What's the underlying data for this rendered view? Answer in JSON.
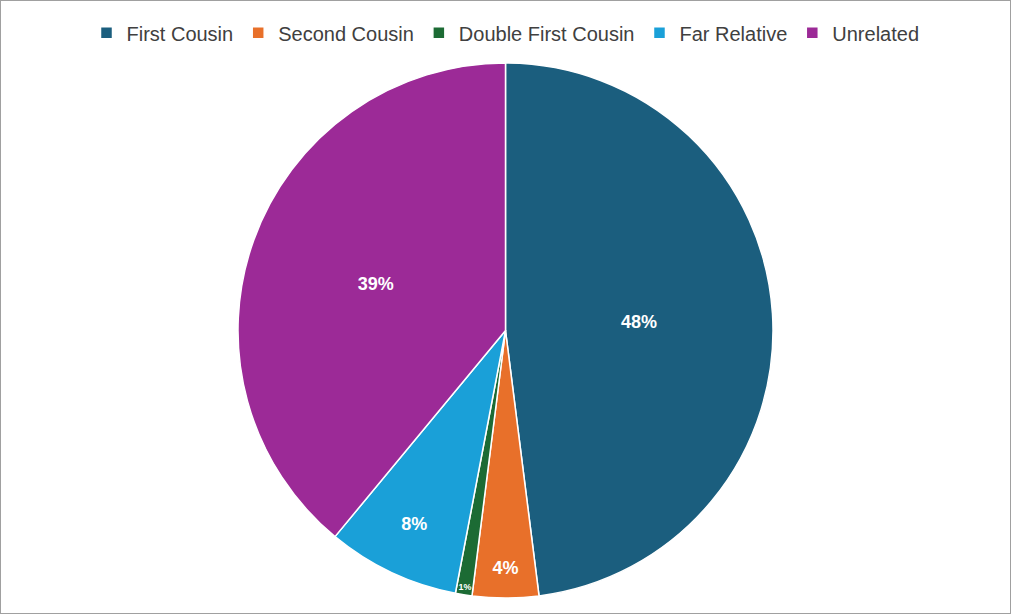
{
  "chart_data": {
    "type": "pie",
    "categories": [
      "First Cousin",
      "Second Cousin",
      "Double First Cousin",
      "Far Relative",
      "Unrelated"
    ],
    "values": [
      48,
      4,
      1,
      8,
      39
    ],
    "value_labels": [
      "48%",
      "4%",
      "1%",
      "8%",
      "39%"
    ],
    "colors": [
      "#1b5e7e",
      "#e8702a",
      "#1c6b34",
      "#1aa0d8",
      "#9c2a97"
    ],
    "legend": "top",
    "data_labels": true
  }
}
